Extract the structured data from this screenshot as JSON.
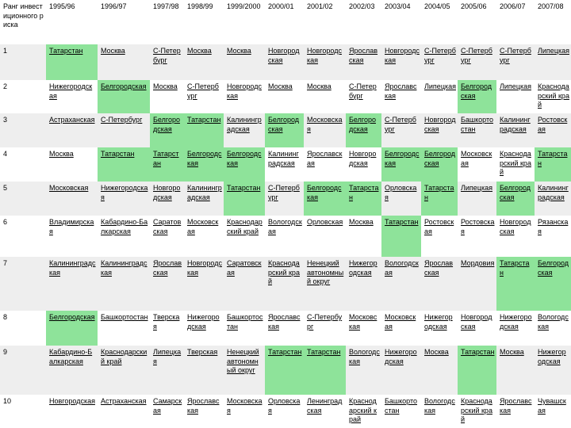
{
  "table": {
    "columns": [
      "Ранг инвестиционного риска",
      "1995/96",
      "1996/97",
      "1997/98",
      "1998/99",
      "1999/2000",
      "2000/01",
      "2001/02",
      "2002/03",
      "2003/04",
      "2004/05",
      "2005/06",
      "2006/07",
      "2007/08"
    ],
    "highlight_color": "#8ee39a",
    "rows": [
      {
        "rank": "1",
        "cells": [
          {
            "t": "Татарстан",
            "g": true
          },
          {
            "t": "Москва",
            "g": false
          },
          {
            "t": "С-Петербург",
            "g": false
          },
          {
            "t": "Москва",
            "g": false
          },
          {
            "t": "Москва",
            "g": false
          },
          {
            "t": "Новгородская",
            "g": false
          },
          {
            "t": "Новгородская",
            "g": false
          },
          {
            "t": "Ярославская",
            "g": false
          },
          {
            "t": "Новгородская",
            "g": false
          },
          {
            "t": "С-Петербург",
            "g": false
          },
          {
            "t": "С-Петербург",
            "g": false
          },
          {
            "t": "С-Петербург",
            "g": false
          },
          {
            "t": "Липецкая",
            "g": false
          }
        ]
      },
      {
        "rank": "2",
        "cells": [
          {
            "t": "Нижегородская",
            "g": false
          },
          {
            "t": "Белгородская",
            "g": true
          },
          {
            "t": "Москва",
            "g": false
          },
          {
            "t": "С-Петербург",
            "g": false
          },
          {
            "t": "Новгородская",
            "g": false
          },
          {
            "t": "Москва",
            "g": false
          },
          {
            "t": "Москва",
            "g": false
          },
          {
            "t": "С-Петербург",
            "g": false
          },
          {
            "t": "Ярославская",
            "g": false
          },
          {
            "t": "Липецкая",
            "g": false
          },
          {
            "t": "Белгородская",
            "g": true
          },
          {
            "t": "Липецкая",
            "g": false
          },
          {
            "t": "Краснодарский край",
            "g": false
          }
        ]
      },
      {
        "rank": "3",
        "cells": [
          {
            "t": "Астраханская",
            "g": false
          },
          {
            "t": "С-Петербург",
            "g": false
          },
          {
            "t": "Белгородская",
            "g": true
          },
          {
            "t": "Татарстан",
            "g": true
          },
          {
            "t": "Калининградская",
            "g": false
          },
          {
            "t": "Белгородская",
            "g": true
          },
          {
            "t": "Московская",
            "g": false
          },
          {
            "t": "Белгородская",
            "g": true
          },
          {
            "t": "С-Петербург",
            "g": false
          },
          {
            "t": "Новгородская",
            "g": false
          },
          {
            "t": "Башкортостан",
            "g": false
          },
          {
            "t": "Калининградская",
            "g": false
          },
          {
            "t": "Ростовская",
            "g": false
          }
        ]
      },
      {
        "rank": "4",
        "cells": [
          {
            "t": "Москва",
            "g": false
          },
          {
            "t": "Татарстан",
            "g": true
          },
          {
            "t": "Татарстан",
            "g": true
          },
          {
            "t": "Белгородская",
            "g": true
          },
          {
            "t": "Белгородская",
            "g": true
          },
          {
            "t": "Калининградская",
            "g": false
          },
          {
            "t": "Ярославская",
            "g": false
          },
          {
            "t": "Новгородская",
            "g": false
          },
          {
            "t": "Белгородская",
            "g": true
          },
          {
            "t": "Белгородская",
            "g": true
          },
          {
            "t": "Московская",
            "g": false
          },
          {
            "t": "Краснодарский край",
            "g": false
          },
          {
            "t": "Татарстан",
            "g": true
          }
        ]
      },
      {
        "rank": "5",
        "cells": [
          {
            "t": "Московская",
            "g": false
          },
          {
            "t": "Нижегородская",
            "g": false
          },
          {
            "t": "Новгородская",
            "g": false
          },
          {
            "t": "Калининградская",
            "g": false
          },
          {
            "t": "Татарстан",
            "g": true
          },
          {
            "t": "С-Петербург",
            "g": false
          },
          {
            "t": "Белгородская",
            "g": true
          },
          {
            "t": "Татарстан",
            "g": true
          },
          {
            "t": "Орловская",
            "g": false
          },
          {
            "t": "Татарстан",
            "g": true
          },
          {
            "t": "Липецкая",
            "g": false
          },
          {
            "t": "Белгородская",
            "g": true
          },
          {
            "t": "Калининградская",
            "g": false
          }
        ]
      },
      {
        "rank": "6",
        "cells": [
          {
            "t": "Владимирская",
            "g": false
          },
          {
            "t": "Кабардино-Балкарская",
            "g": false
          },
          {
            "t": "Саратовская",
            "g": false
          },
          {
            "t": "Московская",
            "g": false
          },
          {
            "t": "Краснодарский край",
            "g": false
          },
          {
            "t": "Вологодская",
            "g": false
          },
          {
            "t": "Орловская",
            "g": false
          },
          {
            "t": "Москва",
            "g": false
          },
          {
            "t": "Татарстан",
            "g": true
          },
          {
            "t": "Ростовская",
            "g": false
          },
          {
            "t": "Ростовская",
            "g": false
          },
          {
            "t": "Новгородская",
            "g": false
          },
          {
            "t": "Рязанская",
            "g": false
          }
        ]
      },
      {
        "rank": "7",
        "cells": [
          {
            "t": "Калининградская",
            "g": false
          },
          {
            "t": "Калининградская",
            "g": false
          },
          {
            "t": "Ярославская",
            "g": false
          },
          {
            "t": "Новгородская",
            "g": false
          },
          {
            "t": "Саратовская",
            "g": false
          },
          {
            "t": "Краснодарский край",
            "g": false
          },
          {
            "t": "Ненецкий автономный округ",
            "g": false
          },
          {
            "t": "Нижегородская",
            "g": false
          },
          {
            "t": "Вологодская",
            "g": false
          },
          {
            "t": "Ярославская",
            "g": false
          },
          {
            "t": "Мордовия",
            "g": false
          },
          {
            "t": "Татарстан",
            "g": true
          },
          {
            "t": "Белгородская",
            "g": true
          }
        ]
      },
      {
        "rank": "8",
        "cells": [
          {
            "t": "Белгородская",
            "g": true
          },
          {
            "t": "Башкортостан",
            "g": false
          },
          {
            "t": "Тверская",
            "g": false
          },
          {
            "t": "Нижегородская",
            "g": false
          },
          {
            "t": "Башкортостан",
            "g": false
          },
          {
            "t": "Ярославская",
            "g": false
          },
          {
            "t": "С-Петербург",
            "g": false
          },
          {
            "t": "Московская",
            "g": false
          },
          {
            "t": "Московская",
            "g": false
          },
          {
            "t": "Нижегородская",
            "g": false
          },
          {
            "t": "Новгородская",
            "g": false
          },
          {
            "t": "Нижегородская",
            "g": false
          },
          {
            "t": "Вологодская",
            "g": false
          }
        ]
      },
      {
        "rank": "9",
        "cells": [
          {
            "t": "Кабардино-Балкарская",
            "g": false
          },
          {
            "t": "Краснодарский край",
            "g": false
          },
          {
            "t": "Липецкая",
            "g": false
          },
          {
            "t": "Тверская",
            "g": false
          },
          {
            "t": "Ненецкий автономный округ",
            "g": false
          },
          {
            "t": "Татарстан",
            "g": true
          },
          {
            "t": "Татарстан",
            "g": true
          },
          {
            "t": "Вологодская",
            "g": false
          },
          {
            "t": "Нижегородская",
            "g": false
          },
          {
            "t": "Москва",
            "g": false
          },
          {
            "t": "Татарстан",
            "g": true
          },
          {
            "t": "Москва",
            "g": false
          },
          {
            "t": "Нижегородская",
            "g": false
          }
        ]
      },
      {
        "rank": "10",
        "cells": [
          {
            "t": "Новгородская",
            "g": false
          },
          {
            "t": "Астраханская",
            "g": false
          },
          {
            "t": "Самарская",
            "g": false
          },
          {
            "t": "Ярославская",
            "g": false
          },
          {
            "t": "Московская",
            "g": false
          },
          {
            "t": "Орловская",
            "g": false
          },
          {
            "t": "Ленинградская",
            "g": false
          },
          {
            "t": "Краснодарский край",
            "g": false
          },
          {
            "t": "Башкортостан",
            "g": false
          },
          {
            "t": "Вологодская",
            "g": false
          },
          {
            "t": "Краснодарский край",
            "g": false
          },
          {
            "t": "Ярославская",
            "g": false
          },
          {
            "t": "Чувашская",
            "g": false
          }
        ]
      }
    ]
  }
}
